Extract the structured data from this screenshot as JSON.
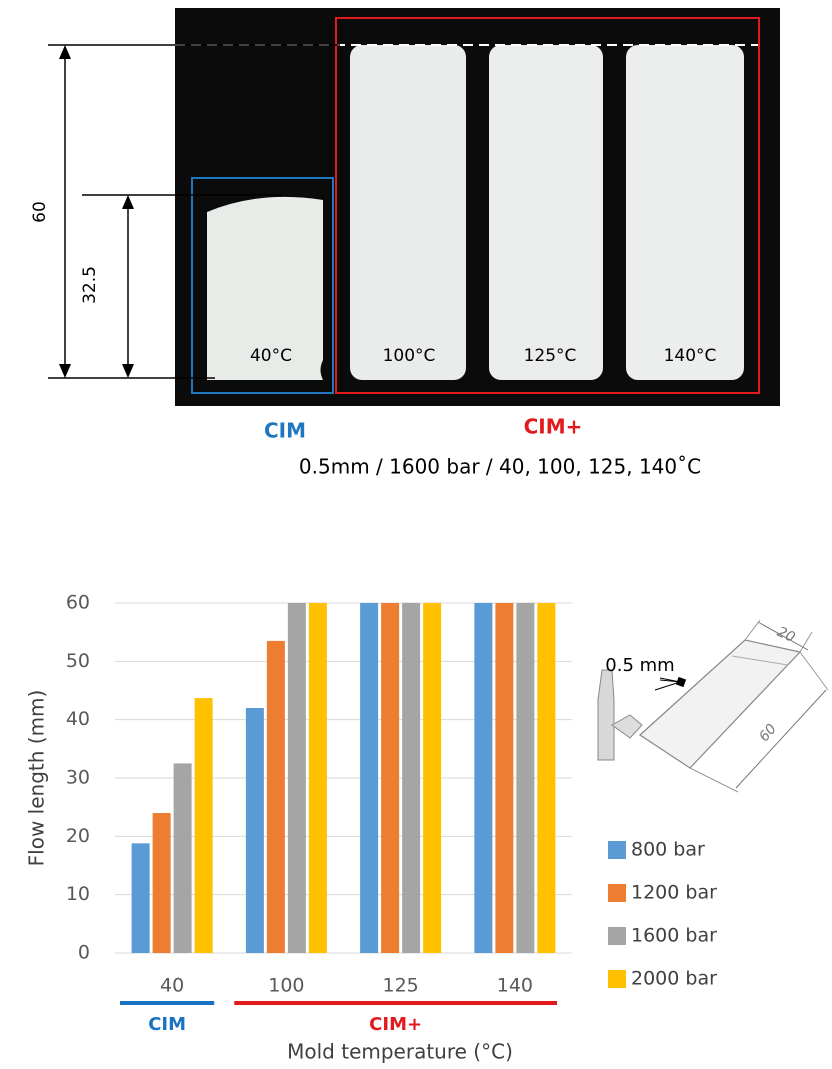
{
  "photo": {
    "dimension_labels": [
      60,
      32.5
    ],
    "plate_labels": [
      "40°C",
      "100°C",
      "125°C",
      "140°C"
    ],
    "group_labels": [
      "CIM",
      "CIM+"
    ],
    "caption": "0.5mm / 1600 bar / 40, 100, 125, 140˚C"
  },
  "inset": {
    "thickness_label": "0.5 mm",
    "width_label": 20,
    "length_label": 60
  },
  "chart_data": {
    "type": "bar",
    "categories": [
      "40",
      "100",
      "125",
      "140"
    ],
    "series": [
      {
        "name": "800 bar",
        "color": "#5b9bd5",
        "values": [
          18.8,
          42,
          60,
          60
        ]
      },
      {
        "name": "1200 bar",
        "color": "#ed7d31",
        "values": [
          24,
          53.5,
          60,
          60
        ]
      },
      {
        "name": "1600 bar",
        "color": "#a5a5a5",
        "values": [
          32.5,
          60,
          60,
          60
        ]
      },
      {
        "name": "2000 bar",
        "color": "#ffc000",
        "values": [
          43.7,
          60,
          60,
          60
        ]
      }
    ],
    "ylim": [
      0,
      60
    ],
    "yticks": [
      0,
      10,
      20,
      30,
      40,
      50,
      60
    ],
    "grid": true,
    "y_label": "Flow length (mm)",
    "x_label": "Mold temperature (°C)",
    "groups": [
      {
        "label": "CIM",
        "color": "#1a73c2"
      },
      {
        "label": "CIM+",
        "color": "#e31a1c"
      }
    ],
    "legend": "right"
  }
}
